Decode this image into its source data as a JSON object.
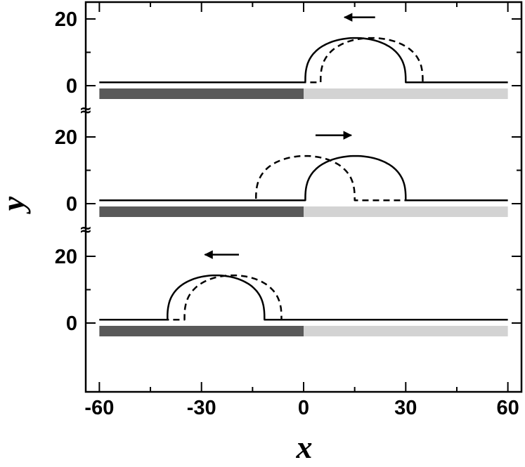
{
  "chart_data": {
    "type": "line",
    "title": "",
    "xlabel": "x",
    "ylabel": "y",
    "xlim": [
      -64,
      64
    ],
    "x_ticks": [
      -60,
      -30,
      0,
      30,
      60
    ],
    "x_tick_labels": [
      "-60",
      "-30",
      "0",
      "30",
      "60"
    ],
    "grid": false,
    "break_symbol": "≈",
    "substrate": {
      "x_range": [
        -60,
        60
      ],
      "boundary_x": 0,
      "left_color": "#595959",
      "right_color": "#d3d3d3"
    },
    "panels": [
      {
        "y_ticks": [
          0,
          20
        ],
        "y_tick_labels": [
          "0",
          "20"
        ],
        "arrow": {
          "direction": "left",
          "x_from": 21,
          "x_to": 12
        },
        "series": [
          {
            "style": "solid",
            "color": "#000000",
            "film": 1,
            "cap_left": 0.5,
            "cap_right": 30,
            "cap_height": 14.3
          },
          {
            "style": "dashed",
            "color": "#000000",
            "film": 1,
            "cap_left": 5,
            "cap_right": 35,
            "cap_height": 14.3
          }
        ]
      },
      {
        "y_ticks": [
          0,
          20
        ],
        "y_tick_labels": [
          "0",
          "20"
        ],
        "arrow": {
          "direction": "right",
          "x_from": 3.5,
          "x_to": 14
        },
        "series": [
          {
            "style": "solid",
            "color": "#000000",
            "film": 1,
            "cap_left": 0.5,
            "cap_right": 30,
            "cap_height": 14.3
          },
          {
            "style": "dashed",
            "color": "#000000",
            "film": 1,
            "cap_left": -14,
            "cap_right": 15,
            "cap_height": 14.3
          }
        ]
      },
      {
        "y_ticks": [
          0,
          20
        ],
        "y_tick_labels": [
          "0",
          "20"
        ],
        "arrow": {
          "direction": "left",
          "x_from": -19,
          "x_to": -29
        },
        "series": [
          {
            "style": "solid",
            "color": "#000000",
            "film": 1,
            "cap_left": -40,
            "cap_right": -11.5,
            "cap_height": 14.3
          },
          {
            "style": "dashed",
            "color": "#000000",
            "film": 1,
            "cap_left": -35,
            "cap_right": -6.5,
            "cap_height": 14.3
          }
        ]
      }
    ]
  }
}
